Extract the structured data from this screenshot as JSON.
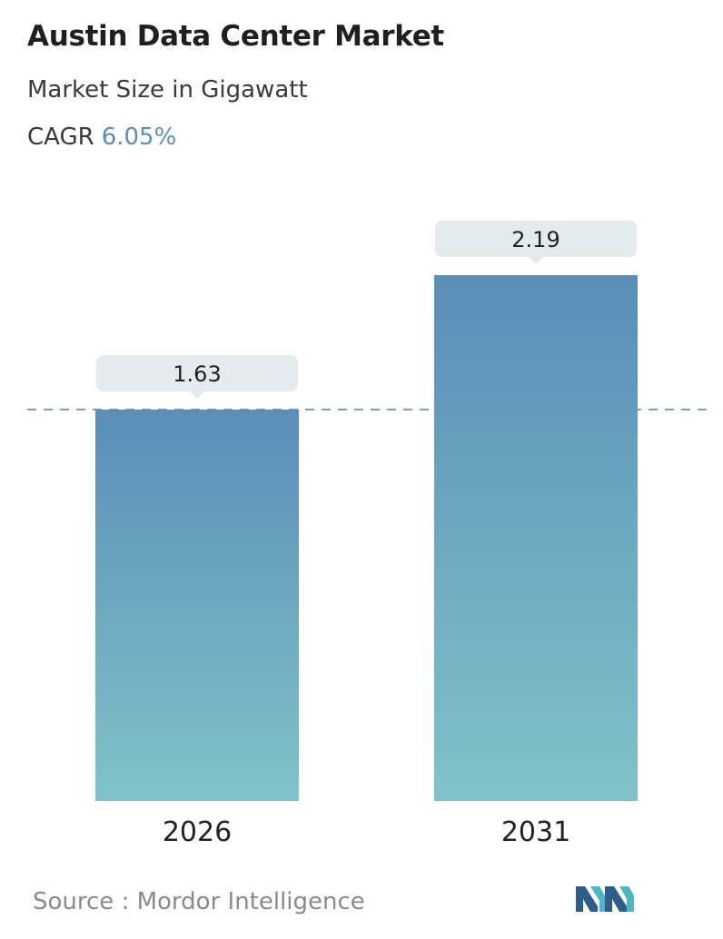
{
  "header": {
    "title": "Austin Data Center Market",
    "subtitle": "Market Size in Gigawatt",
    "cagr_label": "CAGR",
    "cagr_value": "6.05%"
  },
  "chart_data": {
    "type": "bar",
    "categories": [
      "2026",
      "2031"
    ],
    "values": [
      1.63,
      2.19
    ],
    "value_labels": [
      "1.63",
      "2.19"
    ],
    "ylim": [
      0,
      2.19
    ],
    "grid": false,
    "reference_line": {
      "value": 1.63,
      "style": "dashed"
    },
    "colors": {
      "bar_top": "#5b8db8",
      "bar_bottom": "#7fc3c8",
      "label_bg": "#e3ebee",
      "dash": "#5b7f9a"
    }
  },
  "footer": {
    "source": "Source :  Mordor Intelligence",
    "logo_icon": "mordor-intelligence-logo-icon"
  }
}
